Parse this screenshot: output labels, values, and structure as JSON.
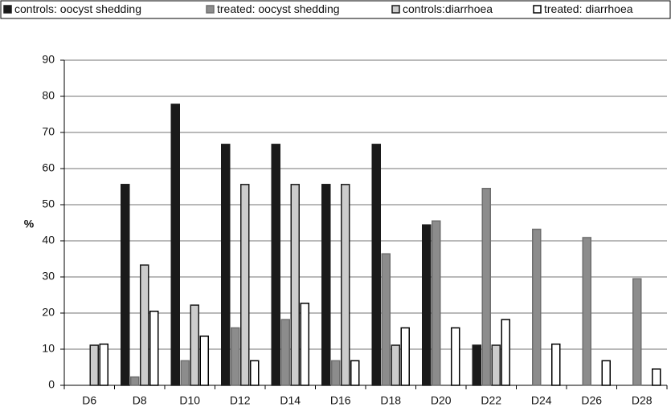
{
  "chart_data": {
    "type": "bar",
    "categories": [
      "D6",
      "D8",
      "D10",
      "D12",
      "D14",
      "D16",
      "D18",
      "D20",
      "D22",
      "D24",
      "D26",
      "D28"
    ],
    "ylabel": "%",
    "ylim": [
      0,
      90
    ],
    "yticks": [
      0,
      10,
      20,
      30,
      40,
      50,
      60,
      70,
      80,
      90
    ],
    "grid": true,
    "legend": "top",
    "series": [
      {
        "name": "controls: oocyst shedding",
        "color": "#1a1a1a",
        "edgecolor": "#1a1a1a",
        "values": [
          0,
          55.6,
          77.8,
          66.7,
          66.7,
          55.6,
          66.7,
          44.4,
          11.1,
          0,
          0,
          0
        ]
      },
      {
        "name": "treated: oocyst shedding",
        "color": "#8c8c8c",
        "edgecolor": "#6e6e6e",
        "values": [
          0,
          2.3,
          6.8,
          15.9,
          18.2,
          6.8,
          36.4,
          45.5,
          54.5,
          43.2,
          40.9,
          29.5
        ]
      },
      {
        "name": "controls:diarrhoea",
        "color": "#cccccc",
        "edgecolor": "#1a1a1a",
        "values": [
          11.1,
          33.3,
          22.2,
          55.6,
          55.6,
          55.6,
          11.1,
          0,
          11.1,
          0,
          0,
          0
        ]
      },
      {
        "name": "treated: diarrhoea",
        "color": "#ffffff",
        "edgecolor": "#000000",
        "values": [
          11.4,
          20.5,
          13.6,
          6.8,
          22.7,
          6.8,
          15.9,
          15.9,
          18.2,
          11.4,
          6.8,
          4.5
        ]
      }
    ]
  }
}
